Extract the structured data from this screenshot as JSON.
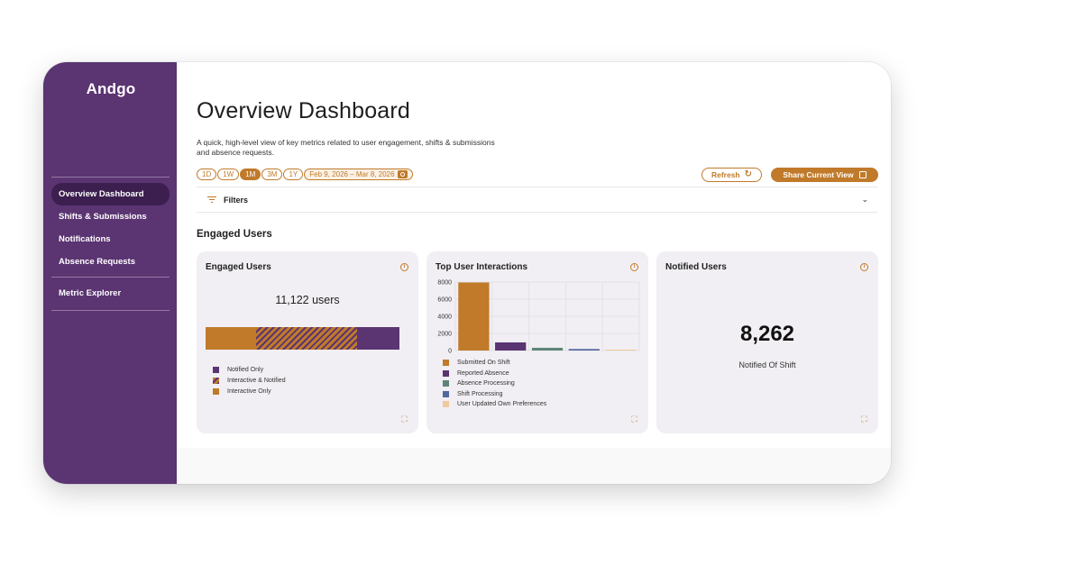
{
  "sidebar": {
    "logo": "Andgo",
    "items": [
      {
        "label": "Overview Dashboard",
        "active": true
      },
      {
        "label": "Shifts & Submissions",
        "active": false
      },
      {
        "label": "Notifications",
        "active": false
      },
      {
        "label": "Absence Requests",
        "active": false
      }
    ],
    "secondary_items": [
      {
        "label": "Metric Explorer"
      }
    ]
  },
  "header": {
    "title": "Overview Dashboard",
    "subtitle": "A quick, high-level view of key metrics related to user engagement, shifts & submissions and absence requests."
  },
  "toolbar": {
    "ranges": [
      "1D",
      "1W",
      "1M",
      "3M",
      "1Y"
    ],
    "active_range": "1M",
    "date_range": "Feb 9, 2026 – Mar 8, 2026",
    "refresh_label": "Refresh",
    "share_label": "Share Current View"
  },
  "filters": {
    "label": "Filters"
  },
  "section": {
    "title": "Engaged Users"
  },
  "colors": {
    "brand_purple": "#5b3472",
    "brand_orange": "#c07a2a",
    "teal": "#5e8478",
    "blue": "#5468a0",
    "peach": "#f1c9a0"
  },
  "cards": {
    "engaged": {
      "title": "Engaged Users",
      "total": "11,122 users",
      "legend": [
        "Notified Only",
        "Interactive & Notified",
        "Interactive Only"
      ]
    },
    "interactions": {
      "title": "Top User Interactions",
      "legend": [
        "Submitted On Shift",
        "Reported Absence",
        "Absence Processing",
        "Shift Processing",
        "User Updated Own Preferences"
      ]
    },
    "notified": {
      "title": "Notified Users",
      "value": "8,262",
      "caption": "Notified Of Shift"
    }
  },
  "chart_data": [
    {
      "type": "bar",
      "orientation": "horizontal-stacked",
      "title": "Engaged Users",
      "series": [
        {
          "name": "Interactive Only",
          "values": [
            2900
          ]
        },
        {
          "name": "Interactive & Notified",
          "values": [
            5800
          ]
        },
        {
          "name": "Notified Only",
          "values": [
            2422
          ]
        }
      ]
    },
    {
      "type": "bar",
      "title": "Top User Interactions",
      "categories": [
        "Submitted On Shift",
        "Reported Absence",
        "Absence Processing",
        "Shift Processing",
        "User Updated Own Preferences"
      ],
      "values": [
        7950,
        950,
        320,
        180,
        30
      ],
      "ylim": [
        0,
        8000
      ],
      "yticks": [
        0,
        2000,
        4000,
        6000,
        8000
      ],
      "grid": true
    }
  ]
}
